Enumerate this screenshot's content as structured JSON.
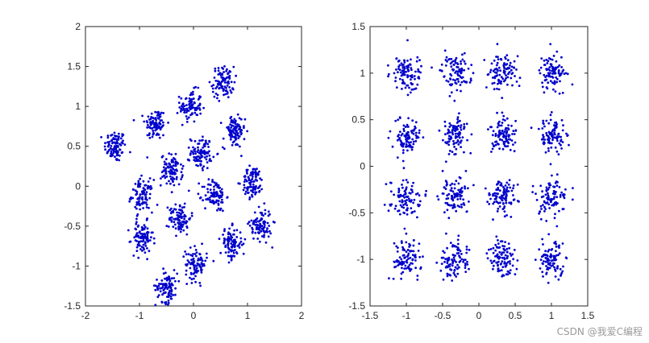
{
  "chart_data": [
    {
      "type": "scatter",
      "title": "",
      "xlabel": "",
      "ylabel": "",
      "xlim": [
        -2,
        2
      ],
      "ylim": [
        -1.5,
        2
      ],
      "xticks": [
        "-2",
        "-1",
        "0",
        "1",
        "2"
      ],
      "yticks": [
        "-1.5",
        "-1",
        "-0.5",
        "0",
        "0.5",
        "1",
        "1.5",
        "2"
      ],
      "grid": false,
      "marker_color": "#0000cc",
      "cluster_centers": [
        [
          -1.45,
          0.5
        ],
        [
          -0.7,
          0.78
        ],
        [
          -0.05,
          1.0
        ],
        [
          0.55,
          1.3
        ],
        [
          -0.95,
          -0.12
        ],
        [
          -0.4,
          0.2
        ],
        [
          0.15,
          0.42
        ],
        [
          0.75,
          0.68
        ],
        [
          -0.95,
          -0.65
        ],
        [
          -0.25,
          -0.4
        ],
        [
          0.4,
          -0.12
        ],
        [
          1.1,
          0.05
        ],
        [
          -0.5,
          -1.25
        ],
        [
          0.05,
          -0.98
        ],
        [
          0.7,
          -0.72
        ],
        [
          1.25,
          -0.48
        ]
      ],
      "cluster_spread": 0.1,
      "points_per_cluster": 95
    },
    {
      "type": "scatter",
      "title": "",
      "xlabel": "",
      "ylabel": "",
      "xlim": [
        -1.5,
        1.5
      ],
      "ylim": [
        -1.5,
        1.5
      ],
      "xticks": [
        "-1.5",
        "-1",
        "-0.5",
        "0",
        "0.5",
        "1",
        "1.5"
      ],
      "yticks": [
        "-1.5",
        "-1",
        "-0.5",
        "0",
        "0.5",
        "1",
        "1.5"
      ],
      "grid": false,
      "marker_color": "#0000cc",
      "cluster_centers": [
        [
          -1,
          1
        ],
        [
          -0.33,
          1
        ],
        [
          0.33,
          1
        ],
        [
          1,
          1
        ],
        [
          -1,
          0.33
        ],
        [
          -0.33,
          0.33
        ],
        [
          0.33,
          0.33
        ],
        [
          1,
          0.33
        ],
        [
          -1,
          -0.33
        ],
        [
          -0.33,
          -0.33
        ],
        [
          0.33,
          -0.33
        ],
        [
          1,
          -0.33
        ],
        [
          -1,
          -1
        ],
        [
          -0.33,
          -1
        ],
        [
          0.33,
          -1
        ],
        [
          1,
          -1
        ]
      ],
      "cluster_spread": 0.1,
      "points_per_cluster": 95
    }
  ],
  "watermark": "CSDN @我爱C编程"
}
